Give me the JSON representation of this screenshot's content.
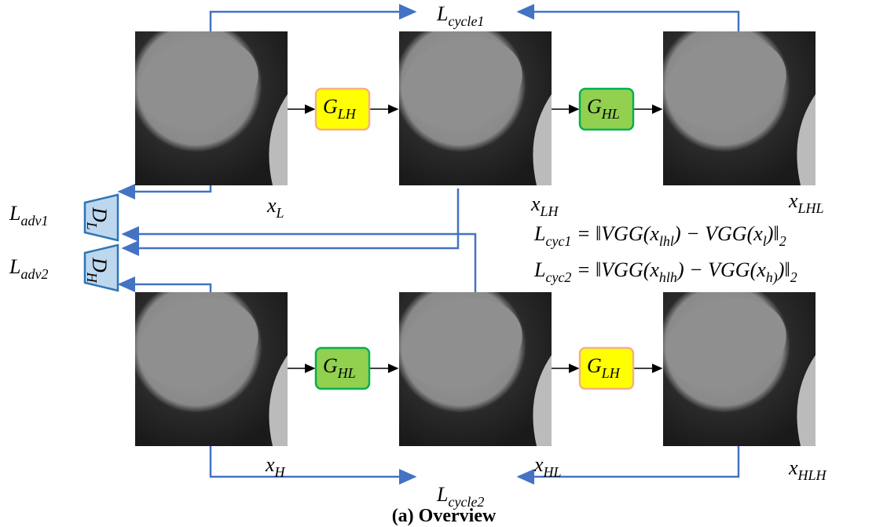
{
  "losses": {
    "cycle1": {
      "base": "L",
      "sub": "cycle1"
    },
    "cycle2": {
      "base": "L",
      "sub": "cycle2"
    },
    "adv1": {
      "base": "L",
      "sub": "adv1"
    },
    "adv2": {
      "base": "L",
      "sub": "adv2"
    }
  },
  "generators": [
    {
      "base": "G",
      "sub": "LH"
    },
    {
      "base": "G",
      "sub": "HL"
    },
    {
      "base": "G",
      "sub": "HL"
    },
    {
      "base": "G",
      "sub": "LH"
    }
  ],
  "discriminators": [
    {
      "base": "D",
      "sub": "L"
    },
    {
      "base": "D",
      "sub": "H"
    }
  ],
  "images": [
    {
      "base": "x",
      "sub": "L"
    },
    {
      "base": "x",
      "sub": "LH"
    },
    {
      "base": "x",
      "sub": "LHL"
    },
    {
      "base": "x",
      "sub": "H"
    },
    {
      "base": "x",
      "sub": "HL"
    },
    {
      "base": "x",
      "sub": "HLH"
    }
  ],
  "formulas": [
    [
      {
        "t": "L"
      },
      {
        "sub": "cyc1"
      },
      {
        "t": " = ‖VGG(x"
      },
      {
        "sub": "lhl"
      },
      {
        "t": ") − VGG(x"
      },
      {
        "sub": "l"
      },
      {
        "t": ")‖"
      },
      {
        "sub": "2"
      }
    ],
    [
      {
        "t": "L"
      },
      {
        "sub": "cyc2"
      },
      {
        "t": " = ‖VGG(x"
      },
      {
        "sub": "hlh"
      },
      {
        "t": ") − VGG(x"
      },
      {
        "sub": "h)"
      },
      {
        "t": ")‖"
      },
      {
        "sub": "2"
      }
    ]
  ],
  "caption": "(a) Overview"
}
